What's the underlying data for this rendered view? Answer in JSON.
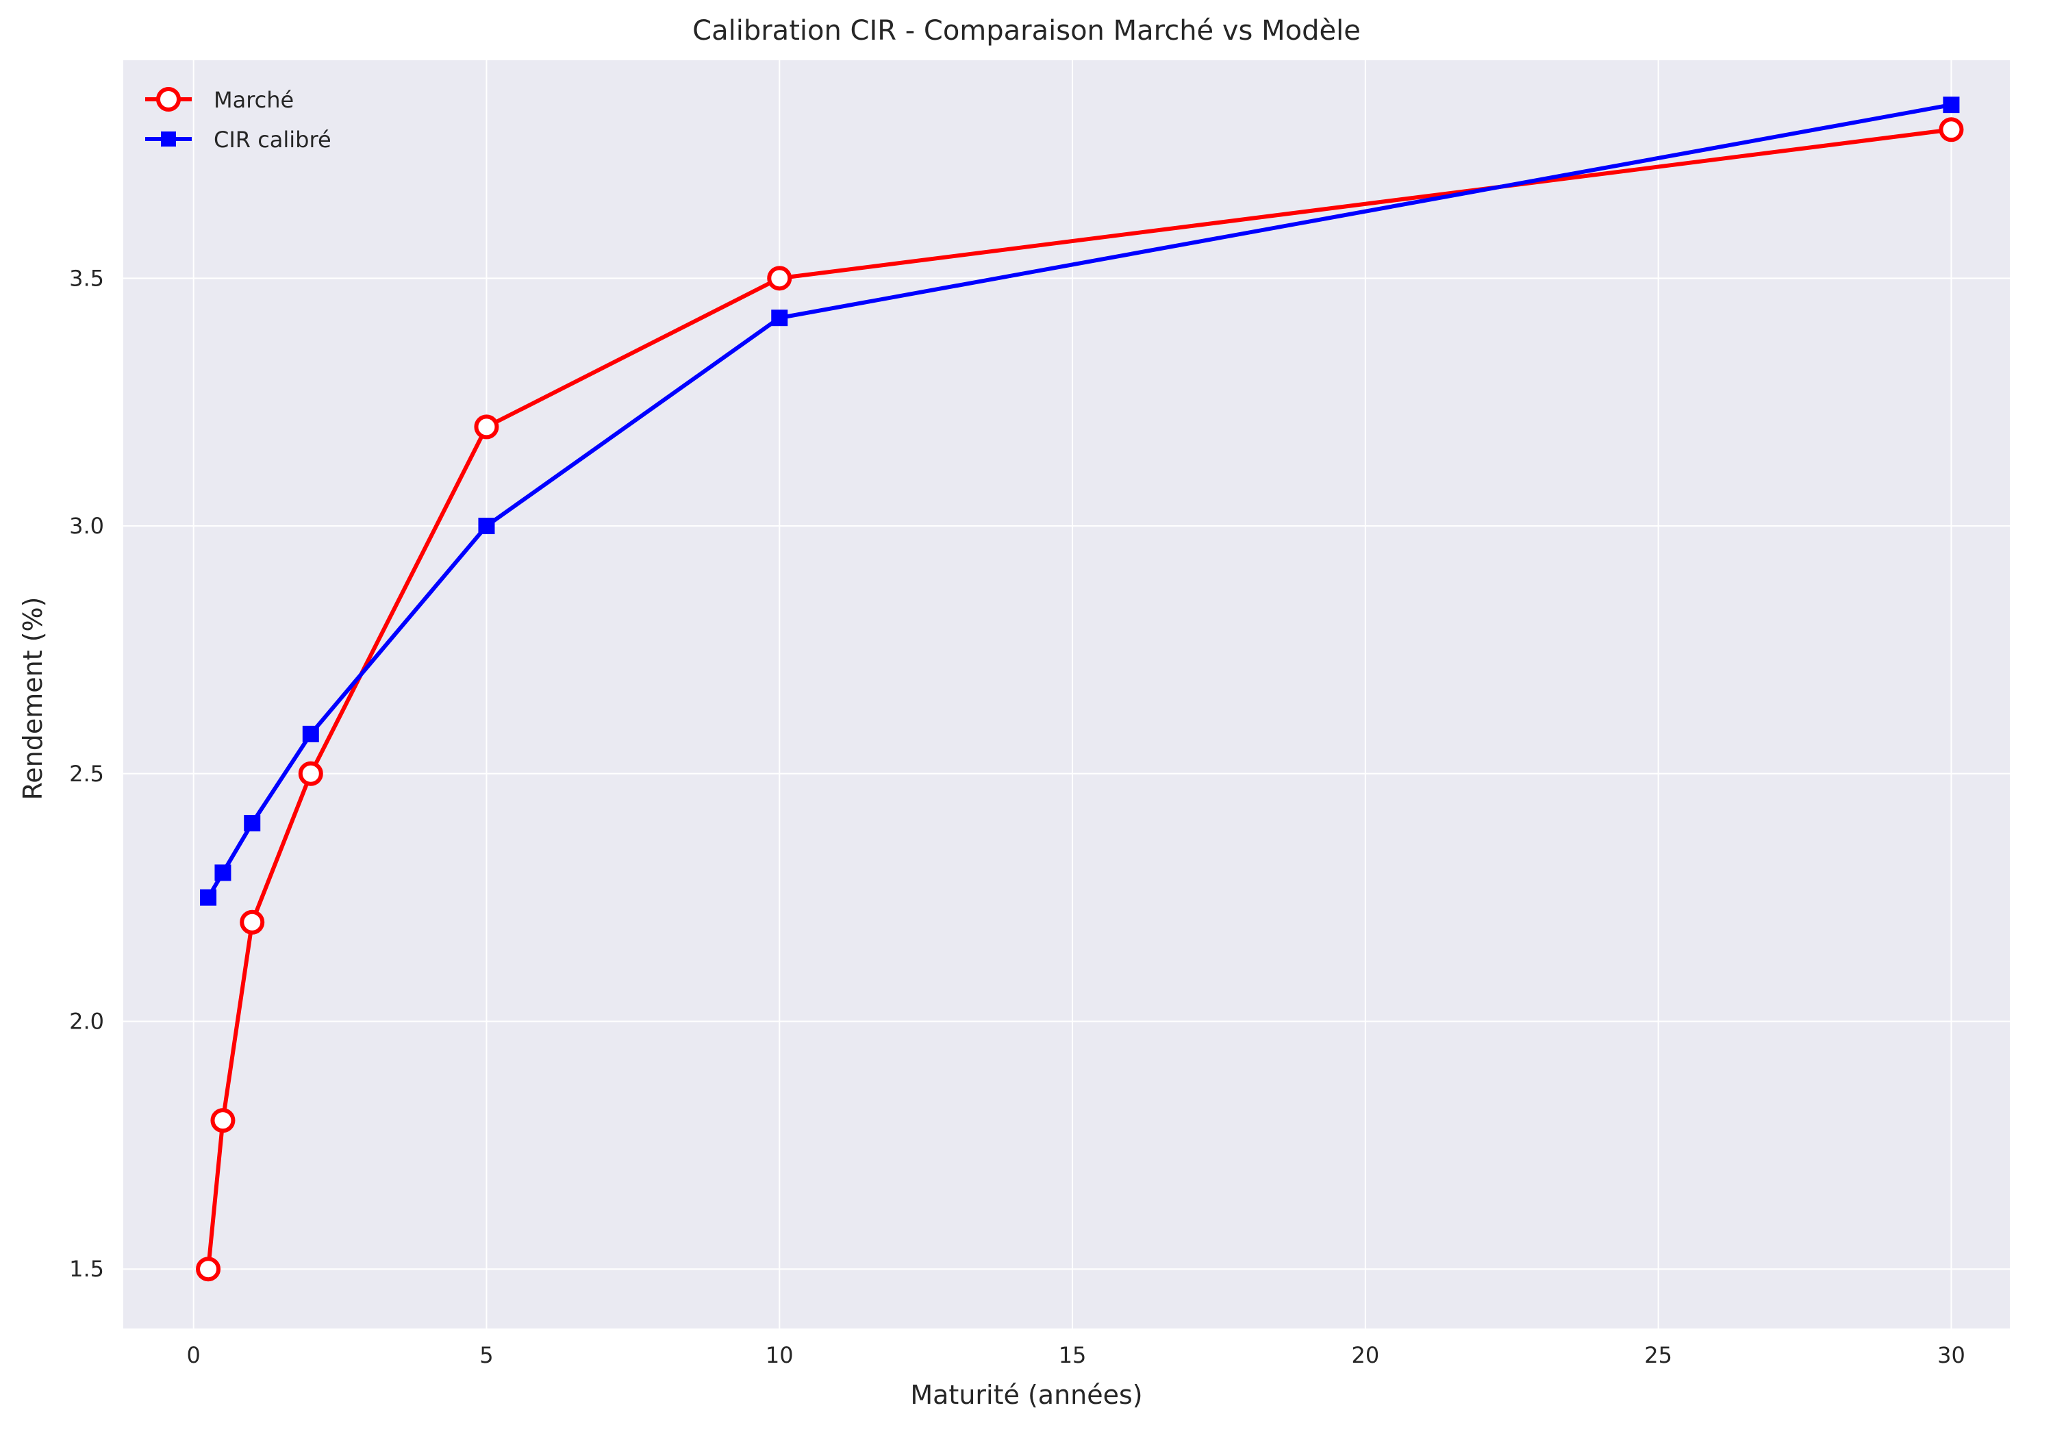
{
  "chart_data": {
    "type": "line",
    "title": "Calibration CIR - Comparaison Marché vs Modèle",
    "xlabel": "Maturité (années)",
    "ylabel": "Rendement (%)",
    "xlim": [
      -1.2,
      31.0
    ],
    "ylim": [
      1.38,
      3.94
    ],
    "xticks": [
      0,
      5,
      10,
      15,
      20,
      25,
      30
    ],
    "yticks": [
      1.5,
      2.0,
      2.5,
      3.0,
      3.5
    ],
    "xtick_labels": [
      "0",
      "5",
      "10",
      "15",
      "20",
      "25",
      "30"
    ],
    "ytick_labels": [
      "1.5",
      "2.0",
      "2.5",
      "3.0",
      "3.5"
    ],
    "grid": true,
    "legend_position": "top-left",
    "series": [
      {
        "name": "Marché",
        "color": "#ff0000",
        "marker": "circle-open",
        "x": [
          0.25,
          0.5,
          1,
          2,
          5,
          10,
          30
        ],
        "y": [
          1.5,
          1.8,
          2.2,
          2.5,
          3.2,
          3.5,
          3.8
        ]
      },
      {
        "name": "CIR calibré",
        "color": "#0000ff",
        "marker": "square",
        "x": [
          0.25,
          0.5,
          1,
          2,
          5,
          10,
          30
        ],
        "y": [
          2.25,
          2.3,
          2.4,
          2.58,
          3.0,
          3.42,
          3.85
        ]
      }
    ]
  }
}
